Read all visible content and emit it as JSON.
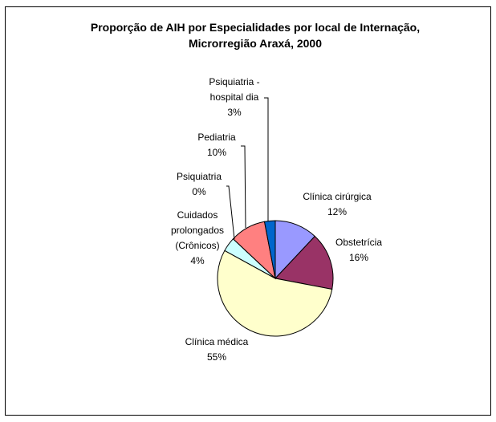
{
  "chart_data": {
    "type": "pie",
    "title": "Proporção de AIH por Especialidades por local de Internação, Microrregião Araxá, 2000",
    "categories": [
      "Clínica cirúrgica",
      "Obstetrícia",
      "Clínica médica",
      "Cuidados prolongados (Crônicos)",
      "Psiquiatria",
      "Pediatria",
      "Psiquiatria - hospital dia"
    ],
    "values": [
      12,
      16,
      55,
      4,
      0,
      10,
      3
    ],
    "value_labels": [
      "12%",
      "16%",
      "55%",
      "4%",
      "0%",
      "10%",
      "3%"
    ],
    "colors": [
      "#9999ff",
      "#993366",
      "#ffffcc",
      "#ccffff",
      "#660066",
      "#ff8080",
      "#0066cc"
    ]
  }
}
